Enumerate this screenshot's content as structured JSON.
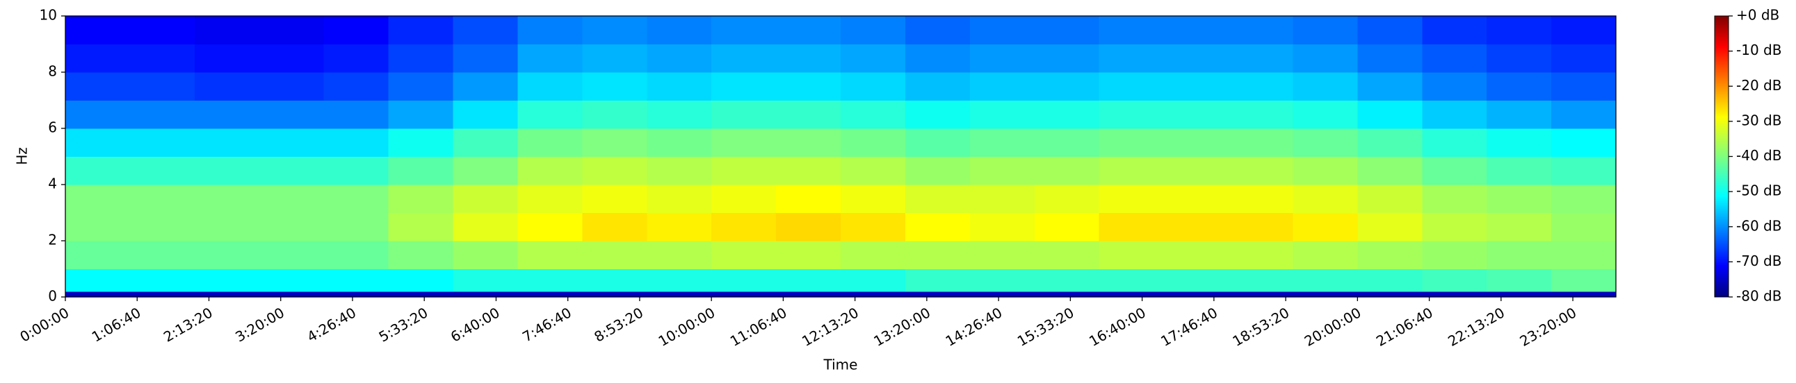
{
  "chart_data": {
    "type": "spectrogram",
    "xlabel": "Time",
    "ylabel": "Hz",
    "xlim": [
      0,
      86400
    ],
    "ylim": [
      0,
      10
    ],
    "xticks": [
      {
        "value": 0,
        "label": "0:00:00"
      },
      {
        "value": 4000,
        "label": "1:06:40"
      },
      {
        "value": 8000,
        "label": "2:13:20"
      },
      {
        "value": 12000,
        "label": "3:20:00"
      },
      {
        "value": 16000,
        "label": "4:26:40"
      },
      {
        "value": 20000,
        "label": "5:33:20"
      },
      {
        "value": 24000,
        "label": "6:40:00"
      },
      {
        "value": 28000,
        "label": "7:46:40"
      },
      {
        "value": 32000,
        "label": "8:53:20"
      },
      {
        "value": 36000,
        "label": "10:00:00"
      },
      {
        "value": 40000,
        "label": "11:06:40"
      },
      {
        "value": 44000,
        "label": "12:13:20"
      },
      {
        "value": 48000,
        "label": "13:20:00"
      },
      {
        "value": 52000,
        "label": "14:26:40"
      },
      {
        "value": 56000,
        "label": "15:33:20"
      },
      {
        "value": 60000,
        "label": "16:40:00"
      },
      {
        "value": 64000,
        "label": "17:46:40"
      },
      {
        "value": 68000,
        "label": "18:53:20"
      },
      {
        "value": 72000,
        "label": "20:00:00"
      },
      {
        "value": 76000,
        "label": "21:06:40"
      },
      {
        "value": 80000,
        "label": "22:13:20"
      },
      {
        "value": 84000,
        "label": "23:20:00"
      }
    ],
    "yticks": [
      0,
      2,
      4,
      6,
      8,
      10
    ],
    "clim": [
      -80,
      0
    ],
    "colorbar_ticks": [
      {
        "value": 0,
        "label": "+0 dB"
      },
      {
        "value": -10,
        "label": "-10 dB"
      },
      {
        "value": -20,
        "label": "-20 dB"
      },
      {
        "value": -30,
        "label": "-30 dB"
      },
      {
        "value": -40,
        "label": "-40 dB"
      },
      {
        "value": -50,
        "label": "-50 dB"
      },
      {
        "value": -60,
        "label": "-60 dB"
      },
      {
        "value": -70,
        "label": "-70 dB"
      },
      {
        "value": -80,
        "label": "-80 dB"
      }
    ],
    "colormap": "jet",
    "xbins": [
      0,
      3600,
      7200,
      10800,
      14400,
      18000,
      21600,
      25200,
      28800,
      32400,
      36000,
      39600,
      43200,
      46800,
      50400,
      54000,
      57600,
      61200,
      64800,
      68400,
      72000,
      75600,
      79200,
      82800,
      86400
    ],
    "ybins": [
      0,
      0.2,
      1,
      2,
      3,
      4,
      5,
      6,
      7,
      8,
      9,
      10
    ],
    "z": [
      [
        -75,
        -75,
        -75,
        -75,
        -75,
        -75,
        -75,
        -75,
        -75,
        -75,
        -75,
        -75,
        -75,
        -75,
        -75,
        -75,
        -75,
        -75,
        -75,
        -75,
        -75,
        -75,
        -75,
        -75
      ],
      [
        -50,
        -50,
        -50,
        -50,
        -50,
        -50,
        -48,
        -48,
        -48,
        -48,
        -48,
        -48,
        -48,
        -46,
        -46,
        -46,
        -46,
        -46,
        -46,
        -46,
        -46,
        -45,
        -44,
        -42
      ],
      [
        -42,
        -42,
        -42,
        -42,
        -42,
        -40,
        -38,
        -36,
        -36,
        -36,
        -35,
        -35,
        -36,
        -36,
        -36,
        -36,
        -35,
        -35,
        -35,
        -36,
        -37,
        -38,
        -39,
        -39
      ],
      [
        -40,
        -40,
        -40,
        -40,
        -40,
        -36,
        -32,
        -30,
        -28,
        -29,
        -28,
        -27,
        -28,
        -30,
        -31,
        -30,
        -28,
        -28,
        -28,
        -29,
        -32,
        -35,
        -36,
        -38
      ],
      [
        -40,
        -40,
        -40,
        -40,
        -40,
        -37,
        -34,
        -32,
        -31,
        -32,
        -31,
        -30,
        -31,
        -33,
        -33,
        -32,
        -31,
        -31,
        -31,
        -32,
        -34,
        -37,
        -38,
        -39
      ],
      [
        -46,
        -46,
        -46,
        -46,
        -46,
        -43,
        -40,
        -36,
        -35,
        -36,
        -35,
        -35,
        -36,
        -38,
        -37,
        -37,
        -36,
        -36,
        -36,
        -37,
        -39,
        -42,
        -44,
        -45
      ],
      [
        -52,
        -52,
        -52,
        -52,
        -52,
        -49,
        -45,
        -41,
        -40,
        -41,
        -40,
        -40,
        -41,
        -43,
        -42,
        -42,
        -41,
        -41,
        -41,
        -42,
        -44,
        -47,
        -49,
        -50
      ],
      [
        -60,
        -60,
        -60,
        -60,
        -60,
        -57,
        -52,
        -47,
        -46,
        -47,
        -46,
        -46,
        -47,
        -49,
        -48,
        -48,
        -47,
        -47,
        -47,
        -48,
        -51,
        -54,
        -56,
        -58
      ],
      [
        -65,
        -65,
        -66,
        -66,
        -65,
        -62,
        -58,
        -53,
        -52,
        -53,
        -52,
        -52,
        -53,
        -55,
        -54,
        -54,
        -53,
        -53,
        -53,
        -54,
        -57,
        -60,
        -62,
        -63
      ],
      [
        -68,
        -68,
        -69,
        -69,
        -68,
        -65,
        -62,
        -57,
        -56,
        -57,
        -56,
        -56,
        -57,
        -59,
        -58,
        -58,
        -57,
        -57,
        -57,
        -58,
        -61,
        -63,
        -65,
        -66
      ],
      [
        -70,
        -70,
        -71,
        -71,
        -70,
        -67,
        -64,
        -60,
        -59,
        -60,
        -59,
        -59,
        -60,
        -62,
        -61,
        -61,
        -60,
        -60,
        -60,
        -61,
        -63,
        -66,
        -67,
        -68
      ]
    ]
  }
}
